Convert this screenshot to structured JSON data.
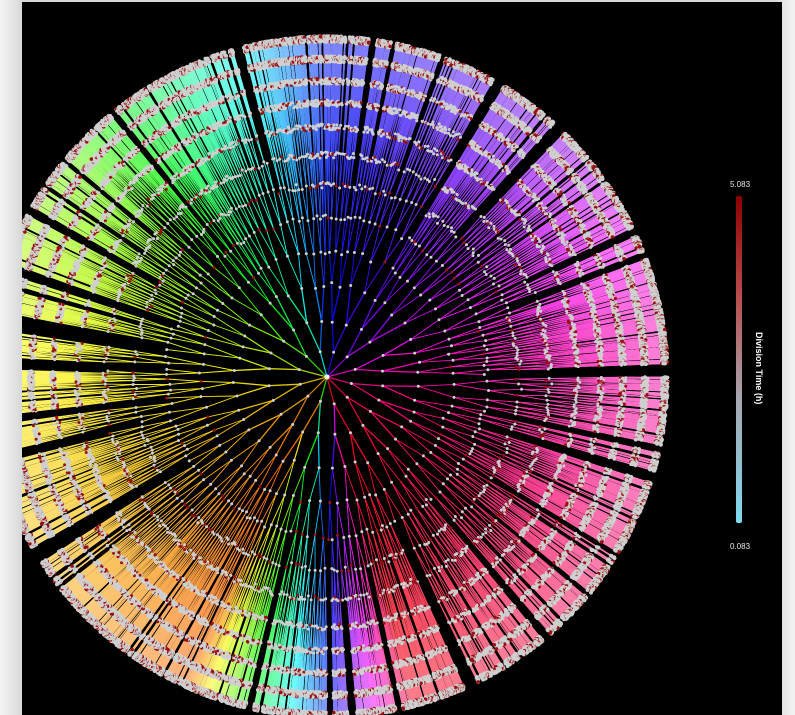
{
  "colorbar": {
    "title": "Division Time (h)",
    "max_label": "5.083",
    "min_label": "0.083",
    "max_value": 5.083,
    "min_value": 0.083,
    "low_color": "#7fd9ee",
    "mid_color": "#a6a6b0",
    "high_color": "#8b0000"
  },
  "tree": {
    "background_color": "#000000",
    "branch_color_order": [
      "blue",
      "magenta",
      "pink",
      "red",
      "orange",
      "yellow",
      "green",
      "cyan"
    ],
    "node_color": "#cfcfcf"
  }
}
